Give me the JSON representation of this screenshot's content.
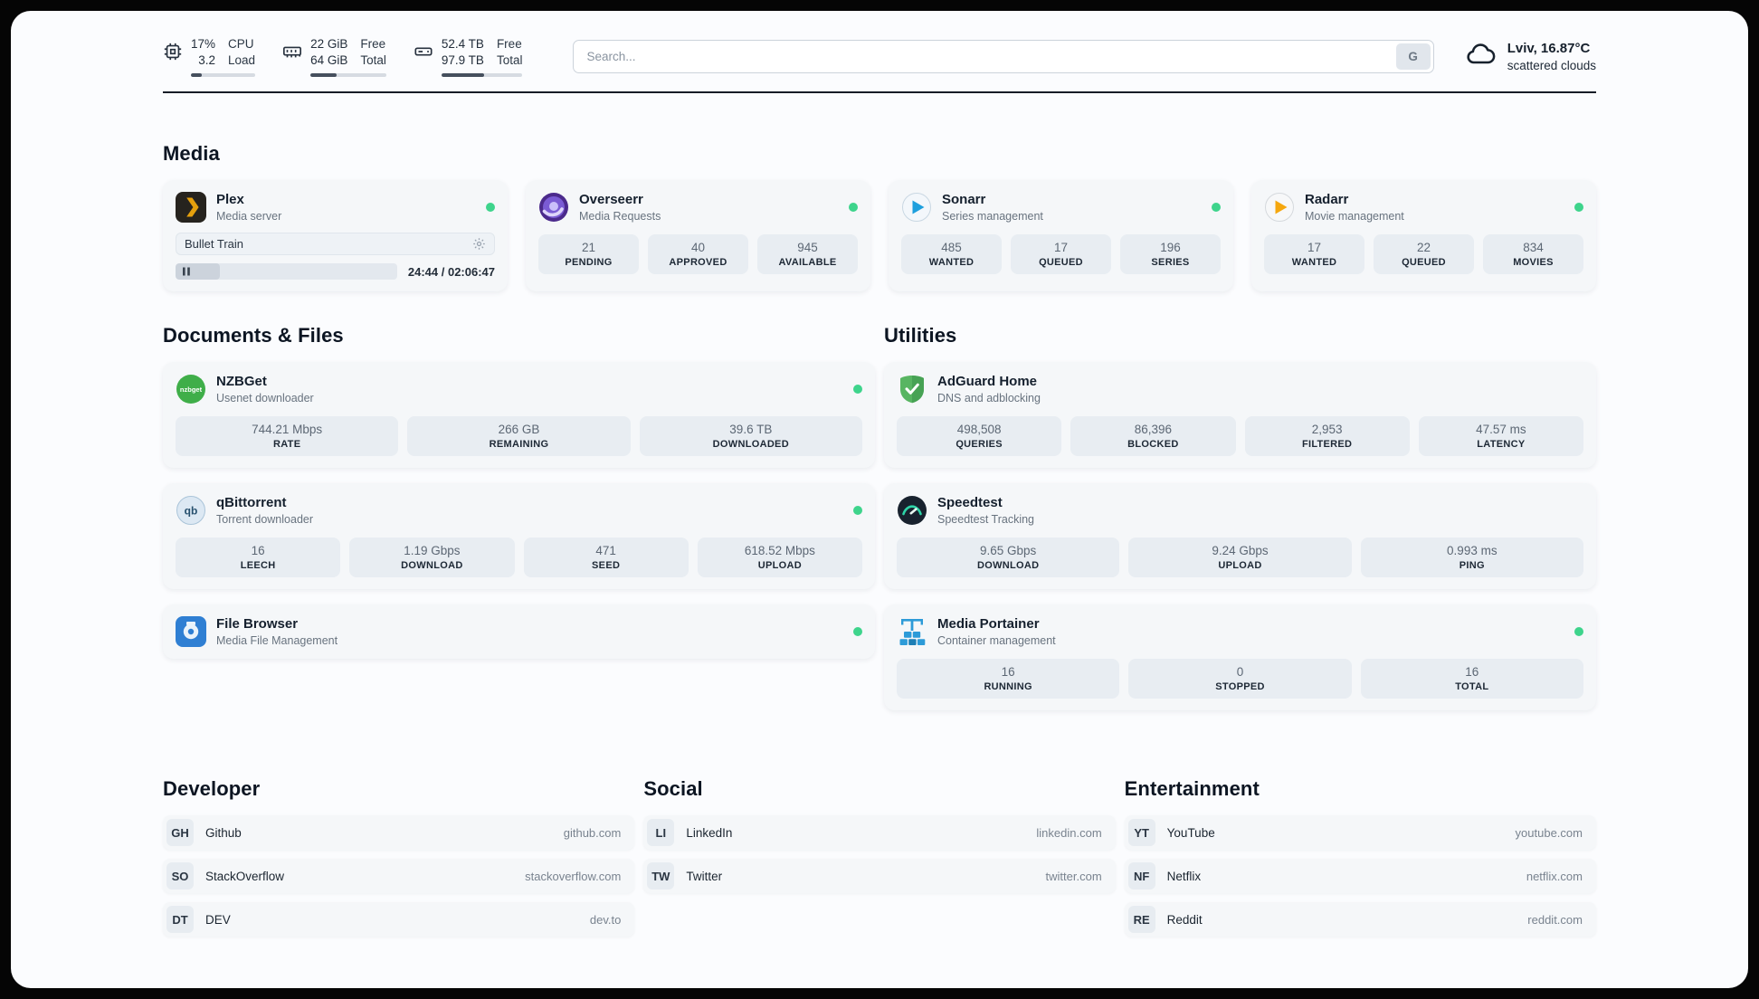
{
  "header": {
    "cpu": {
      "value_top": "17%",
      "value_bottom": "3.2",
      "label_top": "CPU",
      "label_bottom": "Load",
      "progress": 17
    },
    "ram": {
      "value_top": "22 GiB",
      "value_bottom": "64 GiB",
      "label_top": "Free",
      "label_bottom": "Total",
      "progress": 34
    },
    "disk": {
      "value_top": "52.4 TB",
      "value_bottom": "97.9 TB",
      "label_top": "Free",
      "label_bottom": "Total",
      "progress": 53
    },
    "search": {
      "placeholder": "Search...",
      "engine": "G"
    },
    "weather": {
      "location": "Lviv, 16.87°C",
      "condition": "scattered clouds"
    }
  },
  "sections": {
    "media": "Media",
    "documents": "Documents & Files",
    "utilities": "Utilities",
    "developer": "Developer",
    "social": "Social",
    "entertainment": "Entertainment"
  },
  "services": {
    "plex": {
      "name": "Plex",
      "subtitle": "Media server",
      "online": true,
      "player": {
        "title": "Bullet Train",
        "time": "24:44 / 02:06:47",
        "progress": 20
      }
    },
    "overseerr": {
      "name": "Overseerr",
      "subtitle": "Media Requests",
      "online": true,
      "stats": [
        {
          "value": "21",
          "label": "PENDING"
        },
        {
          "value": "40",
          "label": "APPROVED"
        },
        {
          "value": "945",
          "label": "AVAILABLE"
        }
      ]
    },
    "sonarr": {
      "name": "Sonarr",
      "subtitle": "Series management",
      "online": true,
      "stats": [
        {
          "value": "485",
          "label": "WANTED"
        },
        {
          "value": "17",
          "label": "QUEUED"
        },
        {
          "value": "196",
          "label": "SERIES"
        }
      ]
    },
    "radarr": {
      "name": "Radarr",
      "subtitle": "Movie management",
      "online": true,
      "stats": [
        {
          "value": "17",
          "label": "WANTED"
        },
        {
          "value": "22",
          "label": "QUEUED"
        },
        {
          "value": "834",
          "label": "MOVIES"
        }
      ]
    },
    "nzbget": {
      "name": "NZBGet",
      "subtitle": "Usenet downloader",
      "online": true,
      "stats": [
        {
          "value": "744.21 Mbps",
          "label": "RATE"
        },
        {
          "value": "266 GB",
          "label": "REMAINING"
        },
        {
          "value": "39.6 TB",
          "label": "DOWNLOADED"
        }
      ]
    },
    "qbittorrent": {
      "name": "qBittorrent",
      "subtitle": "Torrent downloader",
      "online": true,
      "stats": [
        {
          "value": "16",
          "label": "LEECH"
        },
        {
          "value": "1.19 Gbps",
          "label": "DOWNLOAD"
        },
        {
          "value": "471",
          "label": "SEED"
        },
        {
          "value": "618.52 Mbps",
          "label": "UPLOAD"
        }
      ]
    },
    "filebrowser": {
      "name": "File Browser",
      "subtitle": "Media File Management",
      "online": true
    },
    "adguard": {
      "name": "AdGuard Home",
      "subtitle": "DNS and adblocking",
      "online": false,
      "stats": [
        {
          "value": "498,508",
          "label": "QUERIES"
        },
        {
          "value": "86,396",
          "label": "BLOCKED"
        },
        {
          "value": "2,953",
          "label": "FILTERED"
        },
        {
          "value": "47.57 ms",
          "label": "LATENCY"
        }
      ]
    },
    "speedtest": {
      "name": "Speedtest",
      "subtitle": "Speedtest Tracking",
      "online": false,
      "stats": [
        {
          "value": "9.65 Gbps",
          "label": "DOWNLOAD"
        },
        {
          "value": "9.24 Gbps",
          "label": "UPLOAD"
        },
        {
          "value": "0.993 ms",
          "label": "PING"
        }
      ]
    },
    "portainer": {
      "name": "Media Portainer",
      "subtitle": "Container management",
      "online": true,
      "stats": [
        {
          "value": "16",
          "label": "RUNNING"
        },
        {
          "value": "0",
          "label": "STOPPED"
        },
        {
          "value": "16",
          "label": "TOTAL"
        }
      ]
    }
  },
  "bookmarks": {
    "developer": [
      {
        "abbr": "GH",
        "name": "Github",
        "url": "github.com"
      },
      {
        "abbr": "SO",
        "name": "StackOverflow",
        "url": "stackoverflow.com"
      },
      {
        "abbr": "DT",
        "name": "DEV",
        "url": "dev.to"
      }
    ],
    "social": [
      {
        "abbr": "LI",
        "name": "LinkedIn",
        "url": "linkedin.com"
      },
      {
        "abbr": "TW",
        "name": "Twitter",
        "url": "twitter.com"
      }
    ],
    "entertainment": [
      {
        "abbr": "YT",
        "name": "YouTube",
        "url": "youtube.com"
      },
      {
        "abbr": "NF",
        "name": "Netflix",
        "url": "netflix.com"
      },
      {
        "abbr": "RE",
        "name": "Reddit",
        "url": "reddit.com"
      }
    ]
  }
}
